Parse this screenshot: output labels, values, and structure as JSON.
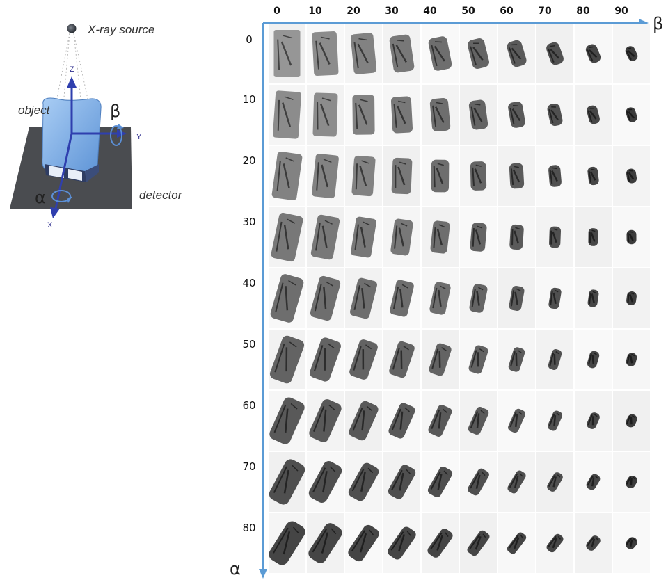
{
  "diagram": {
    "source_label": "X-ray source",
    "object_label": "object",
    "detector_label": "detector",
    "axis_z": "Z",
    "axis_y": "Y",
    "axis_x": "X",
    "rot_beta": "β",
    "rot_alpha": "α"
  },
  "grid": {
    "beta_label": "β",
    "alpha_label": "α",
    "beta_ticks": [
      "0",
      "10",
      "20",
      "30",
      "40",
      "50",
      "60",
      "70",
      "80",
      "90"
    ],
    "alpha_ticks": [
      "0",
      "10",
      "20",
      "30",
      "40",
      "50",
      "60",
      "70",
      "80"
    ],
    "axis_color": "#5b9bd5"
  },
  "colors": {
    "arrow_blue": "#2f3fae",
    "object_blue": "#7fb2ea",
    "detector_gray": "#4a4c50"
  }
}
